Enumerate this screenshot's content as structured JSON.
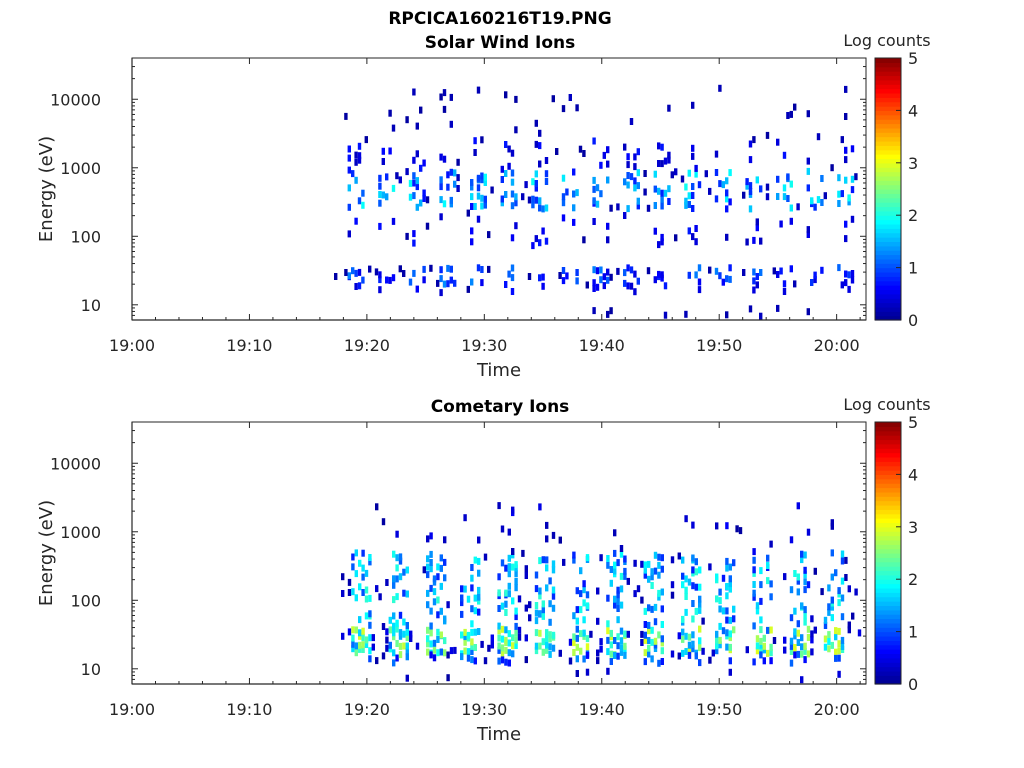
{
  "figure_title": "RPCICA160216T19.PNG",
  "colors": {
    "colormap": [
      "#00008f",
      "#0000ff",
      "#0080ff",
      "#00ffff",
      "#80ff80",
      "#ffff00",
      "#ff8000",
      "#ff0000",
      "#800000"
    ],
    "axis": "#262626",
    "background": "#ffffff"
  },
  "chart_data": [
    {
      "type": "heatmap",
      "title": "Solar Wind Ions",
      "xlabel": "Time",
      "ylabel": "Energy (eV)",
      "x_ticks": [
        "19:00",
        "19:10",
        "19:20",
        "19:30",
        "19:40",
        "19:50",
        "20:00"
      ],
      "y_ticks": [
        "10",
        "100",
        "1000",
        "10000"
      ],
      "y_scale": "log",
      "ylim": [
        6,
        40000
      ],
      "xlim_minutes": [
        0,
        62.5
      ],
      "data_start_minute": 17.2,
      "data_end_minute": 62.2,
      "colorbar": {
        "label": "Log counts",
        "ticks": [
          "0",
          "1",
          "2",
          "3",
          "4",
          "5"
        ],
        "range": [
          0,
          5
        ]
      },
      "bands": [
        {
          "emin": 20,
          "emax": 35,
          "level": 0.9,
          "density": 0.55
        },
        {
          "emin": 15,
          "emax": 20,
          "level": 0.5,
          "density": 0.25
        },
        {
          "emin": 70,
          "emax": 220,
          "level": 0.5,
          "density": 0.1
        },
        {
          "emin": 250,
          "emax": 900,
          "level": 1.3,
          "density": 0.45
        },
        {
          "emin": 900,
          "emax": 2500,
          "level": 0.5,
          "density": 0.15
        },
        {
          "emin": 2500,
          "emax": 15000,
          "level": 0.2,
          "density": 0.05
        },
        {
          "emin": 6,
          "emax": 9,
          "level": 0.2,
          "density": 0.06
        }
      ],
      "burst_period_minutes": 2.6
    },
    {
      "type": "heatmap",
      "title": "Cometary Ions",
      "xlabel": "Time",
      "ylabel": "Energy (eV)",
      "x_ticks": [
        "19:00",
        "19:10",
        "19:20",
        "19:30",
        "19:40",
        "19:50",
        "20:00"
      ],
      "y_ticks": [
        "10",
        "100",
        "1000",
        "10000"
      ],
      "y_scale": "log",
      "ylim": [
        6,
        40000
      ],
      "xlim_minutes": [
        0,
        62.5
      ],
      "data_start_minute": 17.8,
      "data_end_minute": 62.2,
      "colorbar": {
        "label": "Log counts",
        "ticks": [
          "0",
          "1",
          "2",
          "3",
          "4",
          "5"
        ],
        "range": [
          0,
          5
        ]
      },
      "bands": [
        {
          "emin": 16,
          "emax": 38,
          "level": 2.0,
          "density": 0.7
        },
        {
          "emin": 12,
          "emax": 16,
          "level": 1.0,
          "density": 0.4
        },
        {
          "emin": 40,
          "emax": 500,
          "level": 1.4,
          "density": 0.35
        },
        {
          "emin": 500,
          "emax": 2500,
          "level": 0.4,
          "density": 0.05
        },
        {
          "emin": 6,
          "emax": 10,
          "level": 0.3,
          "density": 0.03
        }
      ],
      "burst_period_minutes": 3.1
    }
  ]
}
